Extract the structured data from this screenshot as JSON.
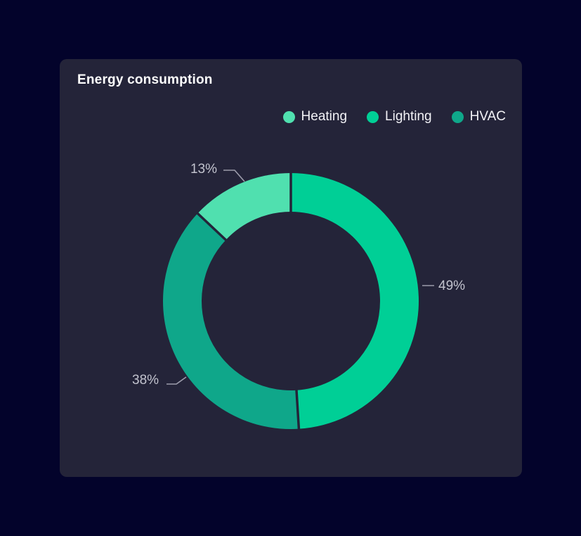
{
  "page": {
    "background": "#03032B"
  },
  "card": {
    "title": "Energy consumption",
    "background": "#242439"
  },
  "legend": {
    "items": [
      {
        "label": "Heating",
        "color": "#50E0AF"
      },
      {
        "label": "Lighting",
        "color": "#00CF96"
      },
      {
        "label": "HVAC",
        "color": "#0FA78A"
      }
    ]
  },
  "chart_data": {
    "type": "pie",
    "donut": true,
    "title": "Energy consumption",
    "unit": "%",
    "start_angle": "top",
    "direction": "clockwise",
    "legend_position": "top-right",
    "inner_radius_ratio": 0.7,
    "categories": [
      "Heating",
      "Lighting",
      "HVAC"
    ],
    "values": [
      13,
      49,
      38
    ],
    "segments_clockwise_from_top": [
      {
        "name": "Lighting",
        "value": 49,
        "label": "49%",
        "color": "#00CF96"
      },
      {
        "name": "HVAC",
        "value": 38,
        "label": "38%",
        "color": "#0FA78A"
      },
      {
        "name": "Heating",
        "value": 13,
        "label": "13%",
        "color": "#50E0AF"
      }
    ]
  },
  "colors": {
    "background": "#03032B",
    "card": "#242439",
    "title_text": "#FFFFFF",
    "legend_text": "#F2F2F6",
    "percent_label_text": "#C2C3CE",
    "callout_line": "#9C9CAB",
    "heating": "#50E0AF",
    "lighting": "#00CF96",
    "hvac": "#0FA78A"
  }
}
